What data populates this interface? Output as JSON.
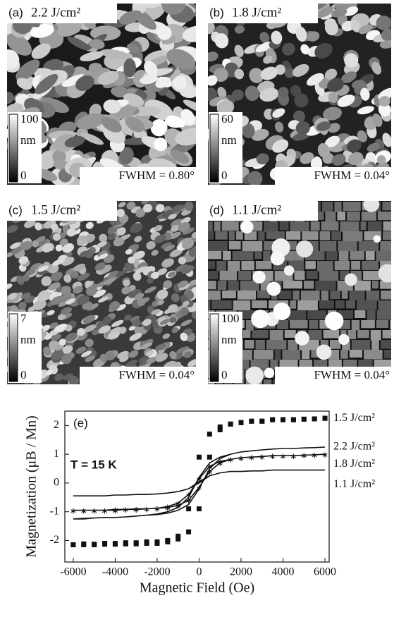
{
  "panels": [
    {
      "label": "(a)",
      "fluence": "2.2 J/cm²",
      "scale_max": 100,
      "scale_unit": "nm",
      "scale_min": 0,
      "fwhm": "FWHM = 0.80°"
    },
    {
      "label": "(b)",
      "fluence": "1.8 J/cm²",
      "scale_max": 60,
      "scale_unit": "nm",
      "scale_min": 0,
      "fwhm": "FWHM = 0.04°"
    },
    {
      "label": "(c)",
      "fluence": "1.5 J/cm²",
      "scale_max": 7,
      "scale_unit": "nm",
      "scale_min": 0,
      "fwhm": "FWHM = 0.04°"
    },
    {
      "label": "(d)",
      "fluence": "1.1 J/cm²",
      "scale_max": 100,
      "scale_unit": "nm",
      "scale_min": 0,
      "fwhm": "FWHM = 0.04°"
    }
  ],
  "chart_data": {
    "type": "line",
    "panel_label": "(e)",
    "annotation": "T = 15 K",
    "x_label": "Magnetic Field (Oe)",
    "y_label": "Magnetization (μB / Mn)",
    "xlim": [
      -6400,
      6200
    ],
    "xticks": [
      -6000,
      -4000,
      -2000,
      0,
      2000,
      4000,
      6000
    ],
    "ylim": [
      -2.75,
      2.5
    ],
    "yticks": [
      -2,
      -1,
      0,
      1,
      2
    ],
    "x": [
      -6000,
      -5500,
      -5000,
      -4500,
      -4000,
      -3500,
      -3000,
      -2500,
      -2000,
      -1500,
      -1000,
      -500,
      0,
      500,
      1000,
      1500,
      2000,
      2500,
      3000,
      3500,
      4000,
      4500,
      5000,
      5500,
      6000,
      6000,
      5500,
      5000,
      4500,
      4000,
      3500,
      3000,
      2500,
      2000,
      1500,
      1000,
      500,
      0,
      -500,
      -1000,
      -1500,
      -2000,
      -2500,
      -3000,
      -3500,
      -4000,
      -4500,
      -5000,
      -5500,
      -6000
    ],
    "series": [
      {
        "name": "1.5 J/cm²",
        "color": "#111111",
        "marker": "square",
        "line": false,
        "values": [
          -2.15,
          -2.12,
          -2.13,
          -2.1,
          -2.1,
          -2.08,
          -2.08,
          -2.05,
          -2.05,
          -2.0,
          -1.95,
          -1.7,
          -0.9,
          0.9,
          1.85,
          2.05,
          2.1,
          2.15,
          2.15,
          2.2,
          2.2,
          2.2,
          2.22,
          2.23,
          2.25,
          2.25,
          2.23,
          2.22,
          2.2,
          2.2,
          2.2,
          2.15,
          2.15,
          2.1,
          2.05,
          1.95,
          1.7,
          0.9,
          -0.9,
          -1.85,
          -2.05,
          -2.1,
          -2.1,
          -2.12,
          -2.12,
          -2.13,
          -2.13,
          -2.15,
          -2.15,
          -2.15
        ]
      },
      {
        "name": "2.2 J/cm²",
        "color": "#111111",
        "marker": "none",
        "line": true,
        "values": [
          -1.25,
          -1.25,
          -1.22,
          -1.2,
          -1.2,
          -1.18,
          -1.15,
          -1.12,
          -1.1,
          -1.05,
          -0.95,
          -0.75,
          -0.2,
          0.5,
          0.85,
          1.0,
          1.08,
          1.12,
          1.15,
          1.18,
          1.2,
          1.2,
          1.22,
          1.23,
          1.25,
          1.25,
          1.23,
          1.22,
          1.2,
          1.2,
          1.18,
          1.15,
          1.12,
          1.08,
          1.0,
          0.9,
          0.7,
          0.2,
          -0.5,
          -0.85,
          -1.0,
          -1.08,
          -1.12,
          -1.15,
          -1.18,
          -1.2,
          -1.2,
          -1.22,
          -1.23,
          -1.25
        ]
      },
      {
        "name": "1.8 J/cm²",
        "color": "#111111",
        "marker": "star",
        "line": true,
        "values": [
          -0.95,
          -0.95,
          -0.95,
          -0.95,
          -0.92,
          -0.92,
          -0.9,
          -0.9,
          -0.88,
          -0.85,
          -0.78,
          -0.6,
          -0.15,
          0.4,
          0.7,
          0.82,
          0.88,
          0.9,
          0.92,
          0.95,
          0.95,
          0.95,
          0.97,
          0.98,
          1.0,
          1.0,
          0.98,
          0.97,
          0.95,
          0.95,
          0.95,
          0.92,
          0.9,
          0.88,
          0.82,
          0.75,
          0.58,
          0.15,
          -0.4,
          -0.7,
          -0.82,
          -0.88,
          -0.9,
          -0.92,
          -0.92,
          -0.95,
          -0.95,
          -0.95,
          -0.95,
          -0.95
        ]
      },
      {
        "name": "1.1 J/cm²",
        "color": "#111111",
        "marker": "none",
        "line": true,
        "values": [
          -0.45,
          -0.45,
          -0.45,
          -0.45,
          -0.42,
          -0.42,
          -0.4,
          -0.4,
          -0.38,
          -0.35,
          -0.3,
          -0.2,
          0,
          0.25,
          0.35,
          0.4,
          0.4,
          0.42,
          0.42,
          0.45,
          0.45,
          0.45,
          0.45,
          0.45,
          0.45,
          0.45,
          0.45,
          0.45,
          0.45,
          0.45,
          0.45,
          0.42,
          0.42,
          0.4,
          0.4,
          0.35,
          0.25,
          0.05,
          -0.2,
          -0.3,
          -0.35,
          -0.38,
          -0.4,
          -0.4,
          -0.42,
          -0.42,
          -0.45,
          -0.45,
          -0.45,
          -0.45
        ]
      }
    ]
  }
}
